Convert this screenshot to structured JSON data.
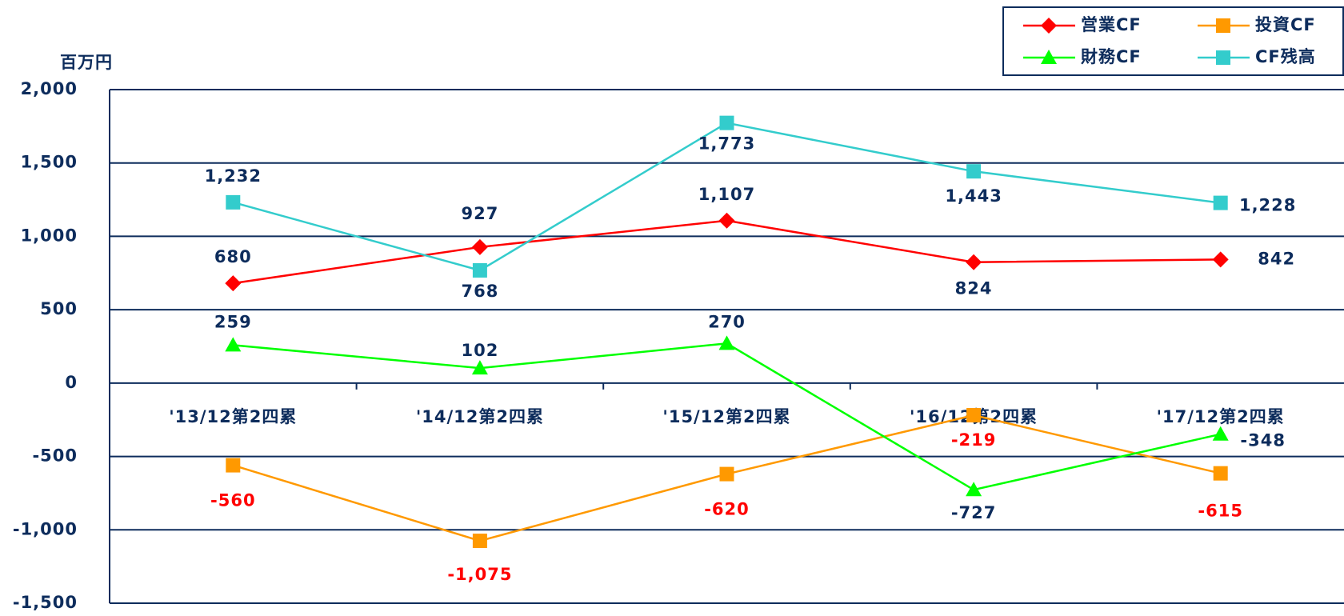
{
  "chart_data": {
    "type": "line",
    "y_axis_label": "百万円",
    "categories": [
      "'13/12第2四累",
      "'14/12第2四累",
      "'15/12第2四累",
      "'16/12第2四累",
      "'17/12第2四累"
    ],
    "series": [
      {
        "name": "営業CF",
        "color": "#ff0000",
        "marker": "diamond",
        "label_color": "#0d2c5c",
        "values": [
          680,
          927,
          1107,
          824,
          842
        ],
        "value_labels": [
          "680",
          "927",
          "1,107",
          "824",
          "842"
        ]
      },
      {
        "name": "投資CF",
        "color": "#ff9900",
        "marker": "square",
        "label_color": "#ff0000",
        "values": [
          -560,
          -1075,
          -620,
          -219,
          -615
        ],
        "value_labels": [
          "-560",
          "-1,075",
          "-620",
          "-219",
          "-615"
        ]
      },
      {
        "name": "財務CF",
        "color": "#00ff00",
        "marker": "triangle",
        "label_color": "#0d2c5c",
        "values": [
          259,
          102,
          270,
          -727,
          -348
        ],
        "value_labels": [
          "259",
          "102",
          "270",
          "-727",
          "-348"
        ]
      },
      {
        "name": "CF残高",
        "color": "#33cccc",
        "marker": "square",
        "label_color": "#0d2c5c",
        "values": [
          1232,
          768,
          1773,
          1443,
          1228
        ],
        "value_labels": [
          "1,232",
          "768",
          "1,773",
          "1,443",
          "1,228"
        ]
      }
    ],
    "ylim": [
      -1500,
      2000
    ],
    "yticks": [
      {
        "value": -1500,
        "label": "-1,500"
      },
      {
        "value": -1000,
        "label": "-1,000"
      },
      -500,
      0,
      500,
      {
        "value": 1000,
        "label": "1,000"
      },
      {
        "value": 1500,
        "label": "1,500"
      },
      {
        "value": 2000,
        "label": "2,000"
      }
    ],
    "grid": true,
    "legend": "top-right"
  }
}
